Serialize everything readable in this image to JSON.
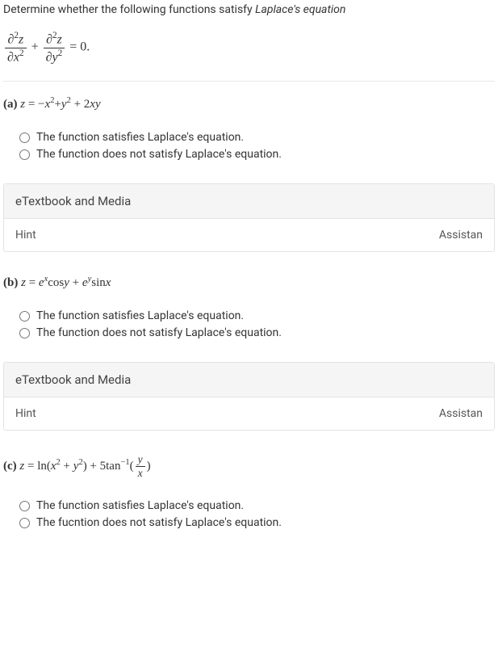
{
  "prompt": {
    "text": "Determine whether the following functions satisfy ",
    "italic": "Laplace's equation"
  },
  "laplace": {
    "numerator1_html": "∂<sup>2</sup><i>z</i>",
    "denominator1_html": "∂<i>x</i><sup>2</sup>",
    "plus": "+",
    "numerator2_html": "∂<sup>2</sup><i>z</i>",
    "denominator2_html": "∂<i>y</i><sup>2</sup>",
    "equals": " = 0."
  },
  "parts": [
    {
      "label_html": "<b>(a)</b> <i>z</i> = −<i>x</i><sup>2</sup>+<i>y</i><sup>2</sup> + 2<i>xy</i>",
      "options": [
        "The function satisfies Laplace's equation.",
        "The function does not satisfy Laplace's equation."
      ],
      "panel_header": "eTextbook and Media",
      "hint": "Hint",
      "assist": "Assistan"
    },
    {
      "label_html": "<b>(b)</b> <i>z</i> = <i>e</i><sup><i>x</i></sup>cos<i>y</i> + <i>e</i><sup><i>y</i></sup>sin<i>x</i>",
      "options": [
        "The function satisfies Laplace's equation.",
        "The function does not satisfy Laplace's equation."
      ],
      "panel_header": "eTextbook and Media",
      "hint": "Hint",
      "assist": "Assistan"
    },
    {
      "label_html": "<b>(c)</b> <i>z</i> = ln(<i>x</i><sup>2</sup> + <i>y</i><sup>2</sup>) + 5tan<sup>−1</sup>(<span class=\"fraction\" style=\"font-size:0.9em\"><span class=\"num\"><i>y</i></span><span class=\"den\"><i>x</i></span></span>)",
      "options": [
        "The function satisfies Laplace's equation.",
        "The fucntion does not satisfy Laplace's equation."
      ]
    }
  ]
}
